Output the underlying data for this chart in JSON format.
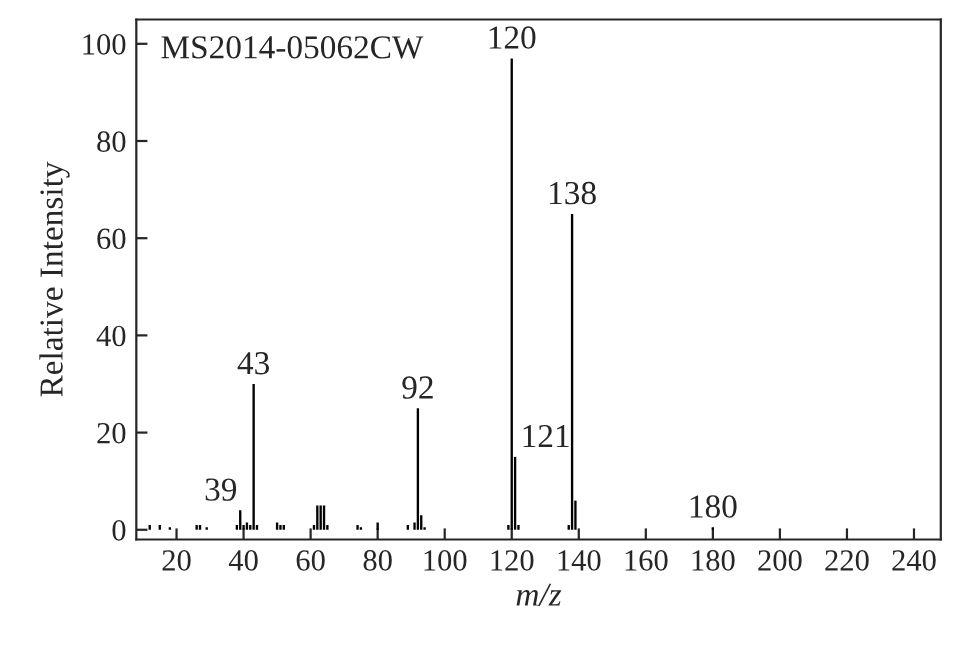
{
  "chart_data": {
    "type": "bar",
    "xlabel": "m/z",
    "ylabel": "Relative Intensity",
    "x": [
      12,
      15,
      18,
      26,
      27,
      29,
      38,
      39,
      40,
      41,
      42,
      43,
      44,
      50,
      51,
      52,
      61,
      62,
      63,
      64,
      65,
      74,
      75,
      80,
      89,
      91,
      92,
      93,
      94,
      119,
      120,
      121,
      122,
      137,
      138,
      139,
      180
    ],
    "values": [
      1,
      1,
      0.5,
      1,
      1,
      0.5,
      1,
      4,
      1,
      1.5,
      1,
      30,
      1,
      1.5,
      1,
      1,
      1,
      5,
      5,
      5,
      1,
      1,
      0.5,
      1.5,
      1,
      1.5,
      25,
      3,
      0.5,
      1,
      97,
      15,
      1,
      1,
      65,
      6,
      0.5
    ],
    "color": "#000000",
    "xlim": [
      8,
      248
    ],
    "xticks": [
      20,
      40,
      60,
      80,
      100,
      120,
      140,
      160,
      180,
      200,
      220,
      240
    ],
    "ylim": [
      -2,
      105
    ],
    "yticks": [
      0,
      20,
      40,
      60,
      80,
      100
    ],
    "grid": false,
    "annotations": [
      "MS2014-05062CW",
      {
        "text": "39",
        "x": 39,
        "y": 4
      },
      {
        "text": "43",
        "x": 43,
        "y": 30
      },
      {
        "text": "92",
        "x": 92,
        "y": 25
      },
      {
        "text": "120",
        "x": 120,
        "y": 97
      },
      {
        "text": "121",
        "x": 121,
        "y": 15
      },
      {
        "text": "138",
        "x": 138,
        "y": 65
      },
      {
        "text": "180",
        "x": 180,
        "y": 0.5
      }
    ]
  }
}
